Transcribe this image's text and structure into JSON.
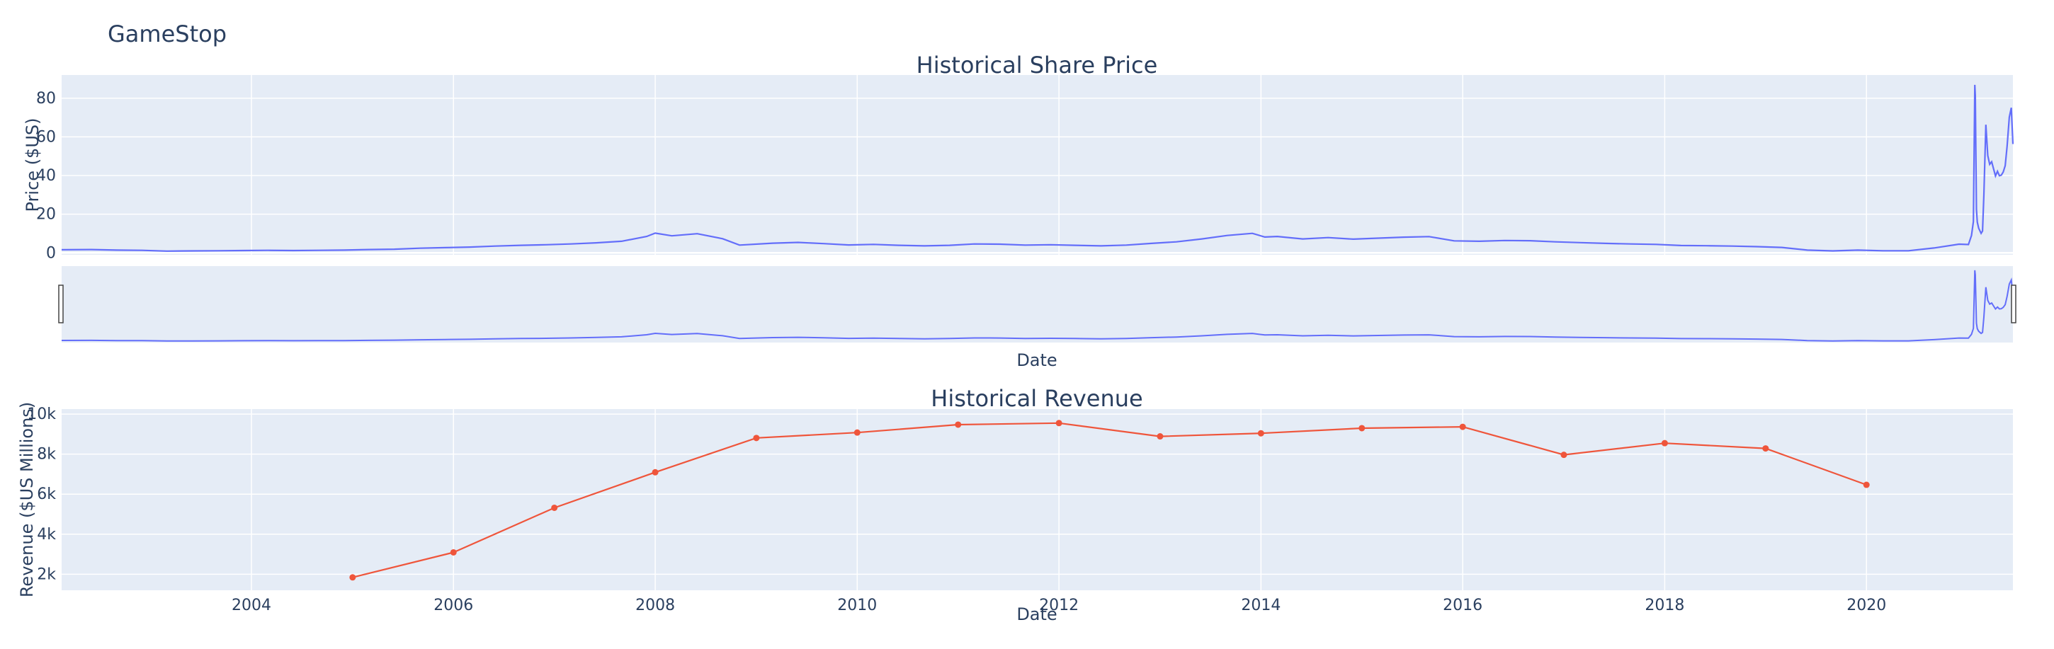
{
  "figure_title": "GameStop",
  "colors": {
    "plot_bg": "#e5ecf6",
    "grid": "#ffffff",
    "text": "#2a3f5f",
    "price_line": "#636efa",
    "revenue_line": "#ef553b",
    "slider_border": "#444444"
  },
  "chart_data": [
    {
      "type": "line",
      "title": "Historical Share Price",
      "xlabel": "Date",
      "ylabel": "Price ($US)",
      "xlim": [
        "2002-02-13",
        "2021-06-14"
      ],
      "ylim": [
        -1,
        92
      ],
      "yticks": [
        0,
        20,
        40,
        60,
        80
      ],
      "grid": true,
      "legend": "none",
      "range_slider": true,
      "range_slider_ylim": [
        -1,
        92
      ],
      "series": [
        {
          "x": [
            "2002-02-13",
            "2002-06-01",
            "2002-09-01",
            "2002-12-01",
            "2003-03-01",
            "2003-06-01",
            "2003-09-01",
            "2003-12-01",
            "2004-03-01",
            "2004-06-01",
            "2004-09-01",
            "2004-12-01",
            "2005-03-01",
            "2005-06-01",
            "2005-09-01",
            "2005-12-01",
            "2006-03-01",
            "2006-06-01",
            "2006-09-01",
            "2006-12-01",
            "2007-03-01",
            "2007-06-01",
            "2007-09-01",
            "2007-12-01",
            "2008-01-01",
            "2008-03-01",
            "2008-06-01",
            "2008-09-01",
            "2008-11-01",
            "2009-03-01",
            "2009-06-01",
            "2009-09-01",
            "2009-12-01",
            "2010-03-01",
            "2010-06-01",
            "2010-09-01",
            "2010-12-01",
            "2011-03-01",
            "2011-06-01",
            "2011-09-01",
            "2011-12-01",
            "2012-03-01",
            "2012-06-01",
            "2012-09-01",
            "2012-12-01",
            "2013-03-01",
            "2013-06-01",
            "2013-09-01",
            "2013-12-01",
            "2014-01-15",
            "2014-03-01",
            "2014-06-01",
            "2014-09-01",
            "2014-12-01",
            "2015-03-01",
            "2015-06-01",
            "2015-09-01",
            "2015-12-01",
            "2016-03-01",
            "2016-06-01",
            "2016-09-01",
            "2016-12-01",
            "2017-03-01",
            "2017-06-01",
            "2017-09-01",
            "2017-12-01",
            "2018-03-01",
            "2018-06-01",
            "2018-09-01",
            "2018-12-01",
            "2019-03-01",
            "2019-06-01",
            "2019-09-01",
            "2019-12-01",
            "2020-03-01",
            "2020-06-01",
            "2020-09-01",
            "2020-12-01",
            "2021-01-04",
            "2021-01-15",
            "2021-01-22",
            "2021-01-27",
            "2021-01-29",
            "2021-02-02",
            "2021-02-05",
            "2021-02-10",
            "2021-02-19",
            "2021-02-24",
            "2021-03-01",
            "2021-03-08",
            "2021-03-10",
            "2021-03-15",
            "2021-03-22",
            "2021-03-29",
            "2021-04-05",
            "2021-04-12",
            "2021-04-19",
            "2021-04-26",
            "2021-05-03",
            "2021-05-10",
            "2021-05-17",
            "2021-05-24",
            "2021-06-01",
            "2021-06-08",
            "2021-06-14"
          ],
          "y": [
            1.6,
            1.7,
            1.4,
            1.3,
            0.9,
            1.0,
            1.1,
            1.2,
            1.3,
            1.2,
            1.3,
            1.4,
            1.7,
            1.9,
            2.4,
            2.7,
            3.0,
            3.5,
            3.9,
            4.2,
            4.6,
            5.2,
            6.0,
            8.5,
            10.2,
            8.8,
            9.9,
            7.3,
            4.0,
            5.0,
            5.4,
            4.8,
            4.1,
            4.4,
            3.9,
            3.6,
            3.9,
            4.6,
            4.5,
            4.0,
            4.2,
            3.9,
            3.6,
            4.0,
            4.9,
            5.7,
            7.2,
            9.0,
            10.1,
            8.2,
            8.5,
            7.2,
            7.9,
            7.1,
            7.6,
            8.1,
            8.4,
            6.2,
            6.0,
            6.4,
            6.3,
            5.7,
            5.3,
            4.9,
            4.6,
            4.4,
            3.8,
            3.7,
            3.5,
            3.2,
            2.8,
            1.4,
            1.0,
            1.4,
            1.1,
            1.1,
            2.5,
            4.5,
            4.3,
            9.0,
            16.2,
            86.9,
            81.3,
            22.5,
            15.9,
            12.8,
            10.1,
            11.3,
            30.1,
            66.3,
            62.1,
            50.3,
            45.8,
            47.1,
            43.4,
            39.8,
            42.2,
            39.9,
            40.2,
            41.8,
            45.1,
            55.2,
            70.2,
            75.1,
            56.3
          ]
        }
      ]
    },
    {
      "type": "line",
      "title": "Historical Revenue",
      "xlabel": "Date",
      "ylabel": "Revenue ($US Millions)",
      "xlim": [
        "2002-02-13",
        "2021-06-14"
      ],
      "ylim": [
        1200,
        10250
      ],
      "yticks": [
        2000,
        4000,
        6000,
        8000,
        10000
      ],
      "ytick_labels": [
        "2k",
        "4k",
        "6k",
        "8k",
        "10k"
      ],
      "xticks": [
        "2004",
        "2006",
        "2008",
        "2010",
        "2012",
        "2014",
        "2016",
        "2018",
        "2020"
      ],
      "grid": true,
      "legend": "none",
      "markers": true,
      "series": [
        {
          "x": [
            "2005",
            "2006",
            "2007",
            "2008",
            "2009",
            "2010",
            "2011",
            "2012",
            "2013",
            "2014",
            "2015",
            "2016",
            "2017",
            "2018",
            "2019",
            "2020"
          ],
          "y": [
            1843,
            3092,
            5319,
            7094,
            8806,
            9078,
            9474,
            9551,
            8887,
            9040,
            9296,
            9364,
            7965,
            8547,
            8285,
            6466
          ]
        }
      ]
    }
  ]
}
